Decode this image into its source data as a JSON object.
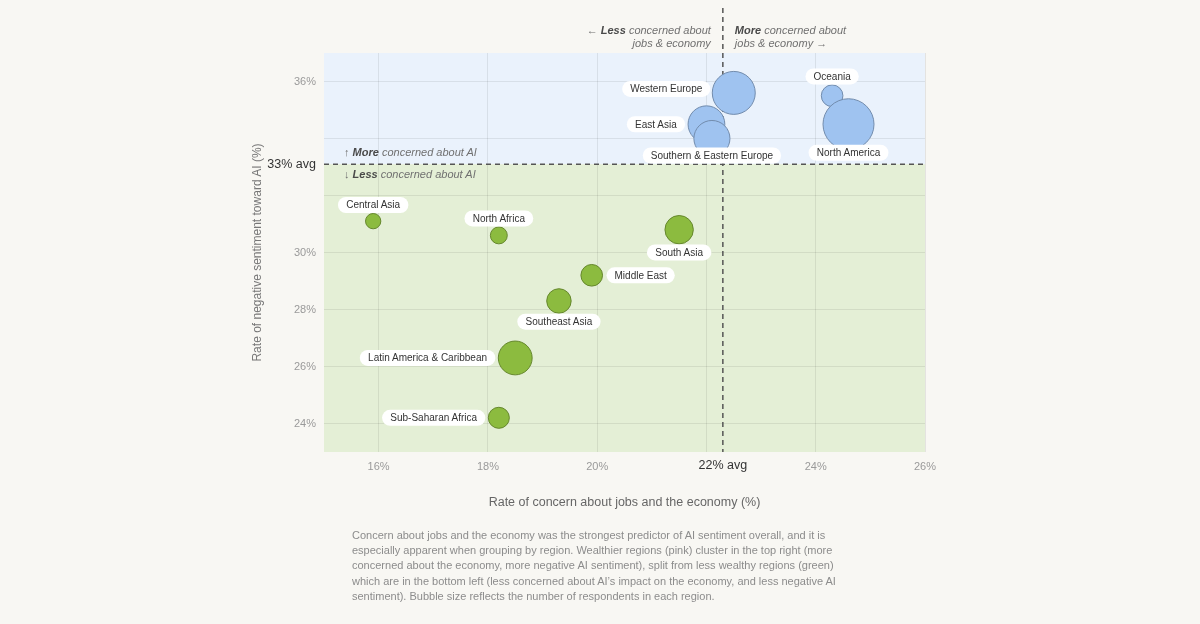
{
  "chart_data": {
    "type": "bubble",
    "xlabel": "Rate of concern about jobs and the economy (%)",
    "ylabel": "Rate of negative sentiment toward AI (%)",
    "xlim": [
      15,
      26
    ],
    "xticks": [
      {
        "value": 16,
        "label": "16%"
      },
      {
        "value": 18,
        "label": "18%"
      },
      {
        "value": 20,
        "label": "20%"
      },
      {
        "value": 22,
        "label": null
      },
      {
        "value": 24,
        "label": "24%"
      },
      {
        "value": 26,
        "label": "26%"
      }
    ],
    "ylim": [
      23,
      37
    ],
    "yticks": [
      {
        "value": 24,
        "label": "24%"
      },
      {
        "value": 26,
        "label": "26%"
      },
      {
        "value": 28,
        "label": "28%"
      },
      {
        "value": 30,
        "label": "30%"
      },
      {
        "value": 32,
        "label": null
      },
      {
        "value": 34,
        "label": null
      },
      {
        "value": 36,
        "label": "36%"
      }
    ],
    "grid": true,
    "bands": [
      {
        "axis": "y",
        "from": 33.1,
        "to": 37,
        "label": "↑ More concerned about AI",
        "color": "#eaf2fc"
      },
      {
        "axis": "y",
        "from": 23,
        "to": 33.1,
        "label": "↓ Less concerned about AI",
        "color": "#e4efd6"
      }
    ],
    "ref_lines": [
      {
        "axis": "x",
        "value": 22.3,
        "label": "22% avg",
        "color": "#555555",
        "line_style": "dashed"
      },
      {
        "axis": "y",
        "value": 33.1,
        "label": "33% avg",
        "color": "#555555",
        "line_style": "dashed"
      }
    ],
    "annotations": [
      "← Less concerned about jobs & economy",
      "More concerned about jobs & economy →",
      "Concern about jobs and the economy was the strongest predictor of AI sentiment overall, and it is especially apparent when grouping by region. Wealthier regions (pink) cluster in the top right (more concerned about the economy, more negative AI sentiment), split from less wealthy regions (green) which are in the bottom left (less concerned about AI’s impact on the economy, and less negative AI sentiment). Bubble size reflects the number of respondents in each region."
    ],
    "series": [
      {
        "name": "Western Europe",
        "color": "#9fc3f0",
        "x": [
          22.5
        ],
        "values": [
          35.6
        ],
        "sizes": [
          0.71
        ]
      },
      {
        "name": "Oceania",
        "color": "#9fc3f0",
        "x": [
          24.3
        ],
        "values": [
          35.5
        ],
        "sizes": [
          0.18
        ]
      },
      {
        "name": "East Asia",
        "color": "#9fc3f0",
        "x": [
          22
        ],
        "values": [
          34.5
        ],
        "sizes": [
          0.52
        ]
      },
      {
        "name": "North America",
        "color": "#9fc3f0",
        "x": [
          24.6
        ],
        "values": [
          34.5
        ],
        "sizes": [
          1
        ]
      },
      {
        "name": "Southern & Eastern Europe",
        "color": "#9fc3f0",
        "x": [
          22.1
        ],
        "values": [
          34
        ],
        "sizes": [
          0.5
        ]
      },
      {
        "name": "Central Asia",
        "color": "#8cbb3f",
        "x": [
          15.9
        ],
        "values": [
          31.1
        ],
        "sizes": [
          0.09
        ]
      },
      {
        "name": "North Africa",
        "color": "#8cbb3f",
        "x": [
          18.2
        ],
        "values": [
          30.6
        ],
        "sizes": [
          0.11
        ]
      },
      {
        "name": "South Asia",
        "color": "#8cbb3f",
        "x": [
          21.5
        ],
        "values": [
          30.8
        ],
        "sizes": [
          0.31
        ]
      },
      {
        "name": "Middle East",
        "color": "#8cbb3f",
        "x": [
          19.9
        ],
        "values": [
          29.2
        ],
        "sizes": [
          0.18
        ]
      },
      {
        "name": "Southeast Asia",
        "color": "#8cbb3f",
        "x": [
          19.3
        ],
        "values": [
          28.3
        ],
        "sizes": [
          0.23
        ]
      },
      {
        "name": "Latin America & Caribbean",
        "color": "#8cbb3f",
        "x": [
          18.5
        ],
        "values": [
          26.3
        ],
        "sizes": [
          0.44
        ]
      },
      {
        "name": "Sub-Saharan Africa",
        "color": "#8cbb3f",
        "x": [
          18.2
        ],
        "values": [
          24.2
        ],
        "sizes": [
          0.17
        ]
      }
    ]
  }
}
